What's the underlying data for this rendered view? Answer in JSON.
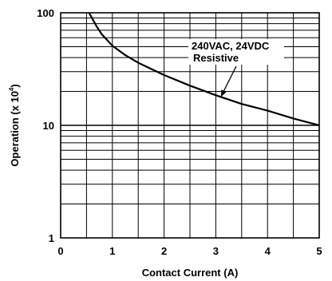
{
  "chart_data": {
    "type": "line",
    "xlabel": "Contact Current (A)",
    "ylabel_main": "Operation (x 10",
    "ylabel_sup": "4",
    "ylabel_close": ")",
    "ylabel": "Operation (x 10^4)",
    "x_scale": "linear",
    "y_scale": "log",
    "xlim": [
      0,
      5
    ],
    "ylim": [
      1,
      100
    ],
    "x_ticks": [
      "0",
      "1",
      "2",
      "3",
      "4",
      "5"
    ],
    "y_ticks": [
      "1",
      "10",
      "100"
    ],
    "grid": true,
    "series": [
      {
        "x": [
          0.55,
          0.7,
          0.8,
          1.0,
          1.25,
          1.5,
          2.0,
          2.5,
          3.0,
          3.5,
          4.0,
          4.5,
          5.0
        ],
        "y": [
          100,
          75,
          64,
          51,
          42,
          36,
          28,
          22.5,
          18.5,
          15.5,
          13.5,
          11.5,
          10
        ]
      }
    ],
    "annotations": [
      {
        "lines": [
          "240VAC, 24VDC",
          "Resistive"
        ],
        "points_to": {
          "x": 3.1,
          "y": 18
        }
      }
    ]
  }
}
